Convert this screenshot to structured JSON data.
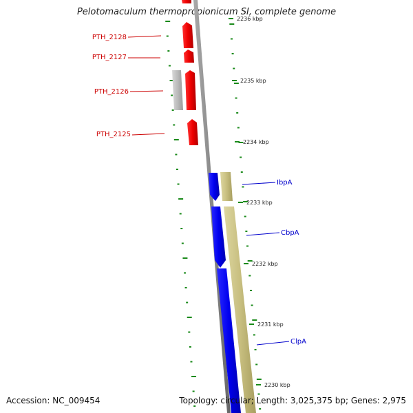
{
  "title": "Pelotomaculum thermopropionicum SI, complete genome",
  "accession_text": "Accession: NC_009454",
  "topology_text": "Topology: circular; Length: 3,025,375 bp; Genes: 2,975",
  "colors": {
    "backbone": "#808080",
    "forward_gene": "#ee0000",
    "reverse_gene": "#0000ee",
    "rna_gray": "#bbbbbb",
    "khaki_feature": "#c8bf80",
    "tick_green": "#1a8a1a",
    "label_red": "#cc0000",
    "label_blue": "#0000cc"
  },
  "kbp_ticks": [
    {
      "label": "2236 kbp"
    },
    {
      "label": "2235 kbp"
    },
    {
      "label": "2234 kbp"
    },
    {
      "label": "2233 kbp"
    },
    {
      "label": "2232 kbp"
    },
    {
      "label": "2231 kbp"
    },
    {
      "label": "2230 kbp"
    }
  ],
  "left_genes": [
    {
      "name": "PTH_2128"
    },
    {
      "name": "PTH_2127"
    },
    {
      "name": "PTH_2126"
    },
    {
      "name": "PTH_2125"
    }
  ],
  "right_genes": [
    {
      "name": "IbpA"
    },
    {
      "name": "CbpA"
    },
    {
      "name": "ClpA"
    }
  ]
}
